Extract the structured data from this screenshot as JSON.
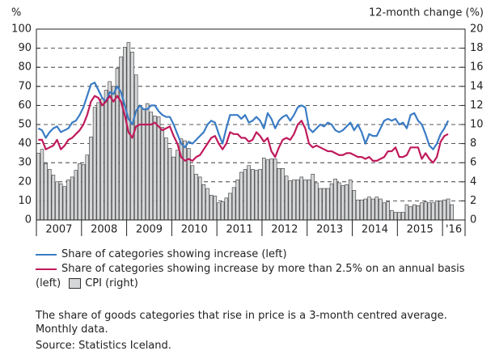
{
  "chart_data": {
    "type": "bar-line",
    "y_unit_label": "%",
    "y2_unit_label": "12-month change (%)",
    "x_labels": [
      "2007",
      "2008",
      "2009",
      "2010",
      "2011",
      "2012",
      "2013",
      "2014",
      "2015",
      "'16"
    ],
    "xlim": [
      0,
      114
    ],
    "ylim": [
      0,
      100
    ],
    "yticks": [
      0,
      10,
      20,
      30,
      40,
      50,
      60,
      70,
      80,
      90,
      100
    ],
    "y2lim": [
      0,
      20
    ],
    "y2ticks": [
      0,
      2,
      4,
      6,
      8,
      10,
      12,
      14,
      16,
      18,
      20
    ],
    "grid": true,
    "series": [
      {
        "name": "CPI (right)",
        "kind": "bar",
        "axis": "y2",
        "color": "#d4d6d8",
        "values": [
          7.0,
          7.4,
          5.9,
          5.3,
          4.7,
          4.0,
          3.8,
          3.5,
          4.2,
          4.5,
          5.2,
          5.9,
          5.8,
          6.8,
          8.7,
          11.8,
          12.3,
          12.7,
          13.6,
          14.5,
          14.0,
          15.9,
          17.1,
          18.1,
          18.6,
          17.6,
          15.2,
          11.9,
          11.6,
          12.2,
          11.3,
          10.9,
          10.8,
          9.7,
          8.6,
          7.5,
          6.6,
          7.3,
          8.5,
          8.3,
          7.5,
          5.7,
          4.8,
          4.5,
          3.7,
          3.3,
          2.6,
          2.5,
          1.8,
          1.9,
          2.3,
          2.8,
          3.4,
          4.2,
          5.0,
          5.3,
          5.7,
          5.3,
          5.2,
          5.3,
          6.5,
          6.3,
          6.4,
          6.4,
          5.4,
          5.4,
          4.6,
          4.1,
          4.2,
          4.2,
          4.5,
          4.2,
          4.2,
          4.8,
          3.9,
          3.3,
          3.3,
          3.3,
          3.8,
          4.3,
          3.9,
          3.6,
          3.7,
          4.2,
          3.1,
          2.1,
          2.1,
          2.2,
          2.4,
          2.2,
          2.4,
          2.2,
          1.8,
          1.9,
          1.0,
          0.8,
          0.8,
          0.8,
          1.6,
          1.4,
          1.6,
          1.5,
          1.8,
          1.9,
          1.8,
          1.8,
          2.0,
          2.0,
          2.1,
          2.2,
          1.6
        ]
      },
      {
        "name": "Share of categories showing increase (left)",
        "kind": "line",
        "color": "#3b7cc4",
        "values": [
          48,
          47,
          43,
          46,
          48,
          49,
          46,
          47,
          48,
          51,
          52,
          55,
          59,
          65,
          71,
          72,
          68,
          64,
          62,
          67,
          66,
          70,
          67,
          60,
          53,
          50,
          57,
          60,
          58,
          58,
          60,
          60,
          57,
          55,
          54,
          54,
          50,
          45,
          40,
          38,
          41,
          40,
          42,
          44,
          46,
          50,
          52,
          51,
          45,
          40,
          48,
          55,
          55,
          55,
          53,
          55,
          51,
          52,
          54,
          52,
          48,
          56,
          53,
          48,
          52,
          54,
          55,
          52,
          55,
          59,
          60,
          59,
          48,
          46,
          48,
          50,
          49,
          51,
          50,
          47,
          46,
          47,
          49,
          51,
          47,
          50,
          46,
          40,
          45,
          44,
          44,
          48,
          52,
          53,
          52,
          53,
          50,
          51,
          48,
          55,
          56,
          52,
          50,
          45,
          39,
          37,
          40,
          45,
          48,
          52,
          null
        ]
      },
      {
        "name": "Share of categories showing increase by more than 2.5% on an annual basis (left)",
        "kind": "line",
        "color": "#c01a5c",
        "values": [
          42,
          42,
          37,
          38,
          39,
          42,
          37,
          39,
          42,
          43,
          45,
          47,
          50,
          55,
          62,
          65,
          64,
          60,
          62,
          65,
          62,
          65,
          62,
          55,
          46,
          43,
          49,
          50,
          50,
          50,
          50,
          51,
          49,
          47,
          48,
          49,
          44,
          40,
          33,
          31,
          32,
          31,
          33,
          34,
          37,
          40,
          43,
          44,
          40,
          37,
          40,
          46,
          45,
          45,
          43,
          43,
          41,
          42,
          46,
          44,
          41,
          43,
          36,
          33,
          38,
          42,
          43,
          42,
          45,
          50,
          52,
          48,
          40,
          38,
          39,
          38,
          37,
          36,
          36,
          35,
          34,
          34,
          35,
          35,
          34,
          33,
          33,
          32,
          33,
          31,
          31,
          32,
          33,
          36,
          36,
          38,
          33,
          33,
          34,
          38,
          38,
          38,
          32,
          35,
          32,
          30,
          33,
          41,
          44,
          45,
          null
        ]
      }
    ],
    "notes": [
      "The share of goods categories that rise in price is a 3-month centred average. Monthly data.",
      "Source: Statistics Iceland."
    ]
  }
}
